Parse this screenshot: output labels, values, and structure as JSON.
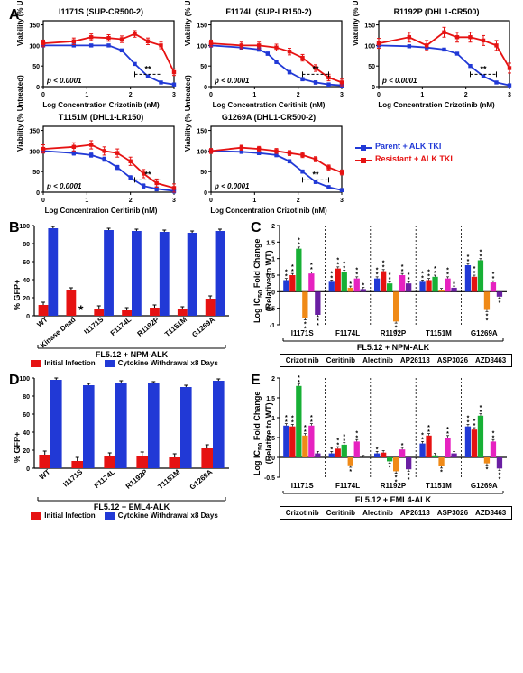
{
  "colors": {
    "blue": "#2139d6",
    "red": "#e61212",
    "green": "#17b035",
    "orange": "#f08a17",
    "magenta": "#e622c0",
    "purple": "#6a1fa3",
    "black": "#000000",
    "grid": "#000000",
    "bg": "#ffffff"
  },
  "panelA": {
    "letter": "A",
    "ylab": "Viability (% Untreated)",
    "ylim": [
      0,
      160
    ],
    "yticks": [
      0,
      50,
      100,
      150
    ],
    "xlim": [
      0,
      3
    ],
    "xticks": [
      0,
      1,
      2,
      3
    ],
    "pvalue": "p < 0.0001",
    "sig": "**",
    "legend": {
      "parent": "Parent + ALK TKI",
      "resistant": "Resistant + ALK TKI"
    },
    "plots": [
      {
        "title": "I1171S (SUP-CR500-2)",
        "xlab": "Log Concentration Crizotinib (nM)",
        "parent": [
          [
            0,
            100
          ],
          [
            0.7,
            100
          ],
          [
            1.1,
            100
          ],
          [
            1.5,
            100
          ],
          [
            1.8,
            88
          ],
          [
            2.1,
            55
          ],
          [
            2.4,
            25
          ],
          [
            2.7,
            10
          ],
          [
            3.0,
            5
          ]
        ],
        "resistant": [
          [
            0,
            105
          ],
          [
            0.7,
            110
          ],
          [
            1.1,
            120
          ],
          [
            1.5,
            118
          ],
          [
            1.8,
            115
          ],
          [
            2.1,
            128
          ],
          [
            2.4,
            110
          ],
          [
            2.7,
            100
          ],
          [
            3.0,
            35
          ]
        ],
        "err_p": 3,
        "err_r": 8
      },
      {
        "title": "F1174L (SUP-LR150-2)",
        "xlab": "Log Concentration Ceritinib (nM)",
        "parent": [
          [
            0,
            100
          ],
          [
            0.7,
            95
          ],
          [
            1.1,
            90
          ],
          [
            1.3,
            80
          ],
          [
            1.5,
            60
          ],
          [
            1.8,
            35
          ],
          [
            2.1,
            18
          ],
          [
            2.4,
            10
          ],
          [
            2.7,
            5
          ],
          [
            3.0,
            3
          ]
        ],
        "resistant": [
          [
            0,
            105
          ],
          [
            0.7,
            100
          ],
          [
            1.1,
            100
          ],
          [
            1.5,
            95
          ],
          [
            1.8,
            85
          ],
          [
            2.1,
            70
          ],
          [
            2.4,
            45
          ],
          [
            2.7,
            22
          ],
          [
            3.0,
            10
          ]
        ],
        "err_p": 4,
        "err_r": 8
      },
      {
        "title": "R1192P (DHL1-CR500)",
        "xlab": "Log Concentration Crizotinib (nM)",
        "parent": [
          [
            0,
            100
          ],
          [
            0.7,
            98
          ],
          [
            1.1,
            95
          ],
          [
            1.5,
            90
          ],
          [
            1.8,
            80
          ],
          [
            2.1,
            50
          ],
          [
            2.4,
            25
          ],
          [
            2.7,
            10
          ],
          [
            3.0,
            3
          ]
        ],
        "resistant": [
          [
            0,
            105
          ],
          [
            0.7,
            120
          ],
          [
            1.1,
            100
          ],
          [
            1.5,
            132
          ],
          [
            1.8,
            120
          ],
          [
            2.1,
            120
          ],
          [
            2.4,
            112
          ],
          [
            2.7,
            100
          ],
          [
            3.0,
            45
          ]
        ],
        "err_p": 3,
        "err_r": 12
      },
      {
        "title": "T1151M (DHL1-LR150)",
        "xlab": "Log Concentration Ceritinib (nM)",
        "parent": [
          [
            0,
            100
          ],
          [
            0.7,
            95
          ],
          [
            1.1,
            90
          ],
          [
            1.4,
            80
          ],
          [
            1.7,
            60
          ],
          [
            2.0,
            35
          ],
          [
            2.3,
            15
          ],
          [
            2.6,
            8
          ],
          [
            3.0,
            3
          ]
        ],
        "resistant": [
          [
            0,
            105
          ],
          [
            0.7,
            110
          ],
          [
            1.1,
            115
          ],
          [
            1.4,
            100
          ],
          [
            1.7,
            95
          ],
          [
            2.0,
            75
          ],
          [
            2.3,
            45
          ],
          [
            2.6,
            22
          ],
          [
            3.0,
            10
          ]
        ],
        "err_p": 5,
        "err_r": 10
      },
      {
        "title": "G1269A (DHL1-CR500-2)",
        "xlab": "Log Concentration Crizotinib (nM)",
        "parent": [
          [
            0,
            100
          ],
          [
            0.7,
            98
          ],
          [
            1.1,
            95
          ],
          [
            1.5,
            90
          ],
          [
            1.8,
            75
          ],
          [
            2.1,
            50
          ],
          [
            2.4,
            25
          ],
          [
            2.7,
            12
          ],
          [
            3.0,
            5
          ]
        ],
        "resistant": [
          [
            0,
            100
          ],
          [
            0.7,
            108
          ],
          [
            1.1,
            105
          ],
          [
            1.5,
            100
          ],
          [
            1.8,
            95
          ],
          [
            2.1,
            90
          ],
          [
            2.4,
            80
          ],
          [
            2.7,
            60
          ],
          [
            3.0,
            48
          ]
        ],
        "err_p": 4,
        "err_r": 6
      }
    ]
  },
  "panelB": {
    "letter": "B",
    "ylab": "% GFP+",
    "ylim": [
      0,
      100
    ],
    "yticks": [
      0,
      20,
      40,
      60,
      80,
      100
    ],
    "xlabel": "FL5.12 + NPM-ALK",
    "legend": {
      "initial": "Initial Infection",
      "withdrawal": "Cytokine Withdrawal x8 Days"
    },
    "categories": [
      "WT",
      "Kinase Dead",
      "I1171S",
      "F1174L",
      "R1192P",
      "T1151M",
      "G1269A"
    ],
    "initial": [
      12,
      28,
      8,
      6,
      9,
      7,
      19
    ],
    "withdrawal": [
      97,
      0,
      95,
      94,
      93,
      92,
      94
    ],
    "dead_mark_index": 1,
    "err_i": 3,
    "err_w": 2
  },
  "panelD": {
    "letter": "D",
    "ylab": "% GFP+",
    "ylim": [
      0,
      100
    ],
    "yticks": [
      0,
      20,
      40,
      60,
      80,
      100
    ],
    "xlabel": "FL5.12 + EML4-ALK",
    "legend": {
      "initial": "Initial Infection",
      "withdrawal": "Cytokine Withdrawal x8 Days"
    },
    "categories": [
      "WT",
      "I1171S",
      "F1174L",
      "R1192P",
      "T1151M",
      "G1269A"
    ],
    "initial": [
      15,
      8,
      13,
      14,
      12,
      22
    ],
    "withdrawal": [
      98,
      92,
      95,
      94,
      90,
      97
    ],
    "err_i": 4,
    "err_w": 2
  },
  "panelC": {
    "letter": "C",
    "ylab": "Log IC₅₀ Fold Change\n(Relative to WT)",
    "ylim": [
      -1,
      2
    ],
    "yticks": [
      -1,
      -0.5,
      0,
      0.5,
      1,
      1.5,
      2
    ],
    "xlabel": "FL5.12 + NPM-ALK",
    "categories": [
      "I1171S",
      "F1174L",
      "R1192P",
      "T1151M",
      "G1269A"
    ],
    "drugs": [
      "Crizotinib",
      "Ceritinib",
      "Alectinib",
      "AP26113",
      "ASP3026",
      "AZD3463"
    ],
    "drug_colors": [
      "blue",
      "red",
      "green",
      "orange",
      "magenta",
      "purple"
    ],
    "values": {
      "I1171S": [
        0.35,
        0.5,
        1.3,
        -0.8,
        0.55,
        -0.7
      ],
      "F1174L": [
        0.3,
        0.7,
        0.6,
        0.12,
        0.4,
        0.08
      ],
      "R1192P": [
        0.4,
        0.62,
        0.25,
        -0.9,
        0.5,
        0.25
      ],
      "T1151M": [
        0.3,
        0.35,
        0.45,
        0.05,
        0.4,
        0.12
      ],
      "G1269A": [
        0.8,
        0.45,
        0.95,
        -0.55,
        0.28,
        -0.15
      ]
    },
    "sig": {
      "I1171S": [
        "**",
        "**",
        "**",
        "**",
        "**",
        "**"
      ],
      "F1174L": [
        "**",
        "**",
        "**",
        "*",
        "**",
        "*"
      ],
      "R1192P": [
        "**",
        "**",
        "**",
        "**",
        "**",
        "**"
      ],
      "T1151M": [
        "**",
        "**",
        "**",
        "",
        "**",
        "*"
      ],
      "G1269A": [
        "**",
        "**",
        "**",
        "**",
        "**",
        "*"
      ]
    }
  },
  "panelE": {
    "letter": "E",
    "ylab": "Log IC₅₀ Fold Change\n(Relative to WT)",
    "ylim": [
      -0.5,
      2
    ],
    "yticks": [
      -0.5,
      0,
      0.5,
      1,
      1.5,
      2
    ],
    "xlabel": "FL5.12 + EML4-ALK",
    "categories": [
      "I1171S",
      "F1174L",
      "R1192P",
      "T1151M",
      "G1269A"
    ],
    "drugs": [
      "Crizotinib",
      "Ceritinib",
      "Alectinib",
      "AP26113",
      "ASP3026",
      "AZD3463"
    ],
    "drug_colors": [
      "blue",
      "red",
      "green",
      "orange",
      "magenta",
      "purple"
    ],
    "values": {
      "I1171S": [
        0.8,
        0.78,
        1.8,
        0.55,
        0.8,
        0.1
      ],
      "F1174L": [
        0.1,
        0.22,
        0.32,
        -0.2,
        0.4,
        0.0
      ],
      "R1192P": [
        0.1,
        0.12,
        -0.1,
        -0.35,
        0.2,
        -0.3
      ],
      "T1151M": [
        0.35,
        0.55,
        0.05,
        -0.22,
        0.5,
        0.1
      ],
      "G1269A": [
        0.78,
        0.7,
        1.05,
        -0.15,
        0.4,
        -0.28
      ]
    },
    "sig": {
      "I1171S": [
        "**",
        "**",
        "**",
        "**",
        "**",
        ""
      ],
      "F1174L": [
        "*",
        "**",
        "**",
        "*",
        "**",
        ""
      ],
      "R1192P": [
        "*",
        "",
        "*",
        "**",
        "*",
        "**"
      ],
      "T1151M": [
        "**",
        "**",
        "",
        "*",
        "**",
        ""
      ],
      "G1269A": [
        "**",
        "**",
        "**",
        "*",
        "**",
        "**"
      ]
    }
  }
}
